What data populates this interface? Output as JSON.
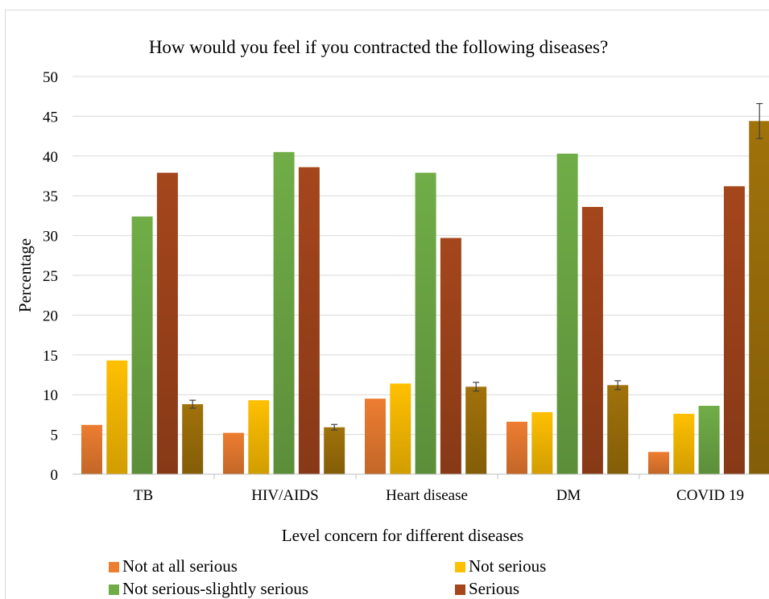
{
  "chart_data": {
    "type": "bar",
    "title": "How would you feel if you contracted the following diseases?",
    "xlabel": "Level concern for different diseases",
    "ylabel": "Percentage",
    "ylim": [
      0,
      50
    ],
    "yticks": [
      "0",
      "5",
      "10",
      "15",
      "20",
      "25",
      "30",
      "35",
      "40",
      "45",
      "50"
    ],
    "grid": true,
    "legend_position": "bottom",
    "categories": [
      "TB",
      "HIV/AIDS",
      "Heart disease",
      "DM",
      "COVID 19"
    ],
    "series": [
      {
        "name": "Not  at all serious",
        "color": "#ed7d31",
        "values": [
          6.2,
          5.2,
          9.5,
          6.6,
          2.8
        ]
      },
      {
        "name": "Not serious",
        "color": "#ffc000",
        "values": [
          14.3,
          9.3,
          11.4,
          7.8,
          7.6
        ]
      },
      {
        "name": "Not serious-slightly serious",
        "color": "#70ad47",
        "values": [
          32.4,
          40.5,
          37.9,
          40.3,
          8.6
        ]
      },
      {
        "name": "Serious",
        "color": "#a5461c",
        "values": [
          37.9,
          38.6,
          29.7,
          33.6,
          36.2
        ]
      },
      {
        "color": "#a0720a",
        "values": [
          8.8,
          5.9,
          11.0,
          11.2,
          44.4
        ],
        "error": [
          0.5,
          0.35,
          0.55,
          0.55,
          2.2
        ]
      }
    ]
  }
}
